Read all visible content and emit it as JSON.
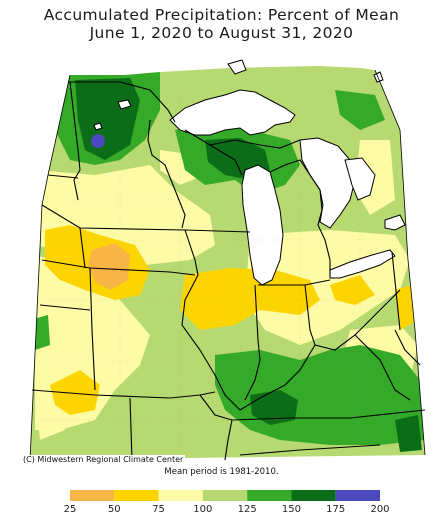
{
  "title_line1": "Accumulated Precipitation: Percent of Mean",
  "title_line2": "June 1, 2020 to August 31, 2020",
  "credit": "(C) Midwestern Regional Climate Center",
  "mean_period": "Mean period is 1981-2010.",
  "legend": {
    "ticks": [
      "25",
      "50",
      "75",
      "100",
      "125",
      "150",
      "175",
      "200"
    ],
    "bins": [
      {
        "range": "25-50",
        "color": "#f8b445"
      },
      {
        "range": "50-75",
        "color": "#fcd501"
      },
      {
        "range": "75-100",
        "color": "#fdfba6"
      },
      {
        "range": "100-125",
        "color": "#b7d971"
      },
      {
        "range": "125-150",
        "color": "#35a928"
      },
      {
        "range": "150-175",
        "color": "#0b6d17"
      },
      {
        "range": "175-200",
        "color": "#4a49bd"
      }
    ]
  },
  "colors": {
    "lake": "#ffffff",
    "outside": "#ffffff",
    "border": "#000000"
  }
}
